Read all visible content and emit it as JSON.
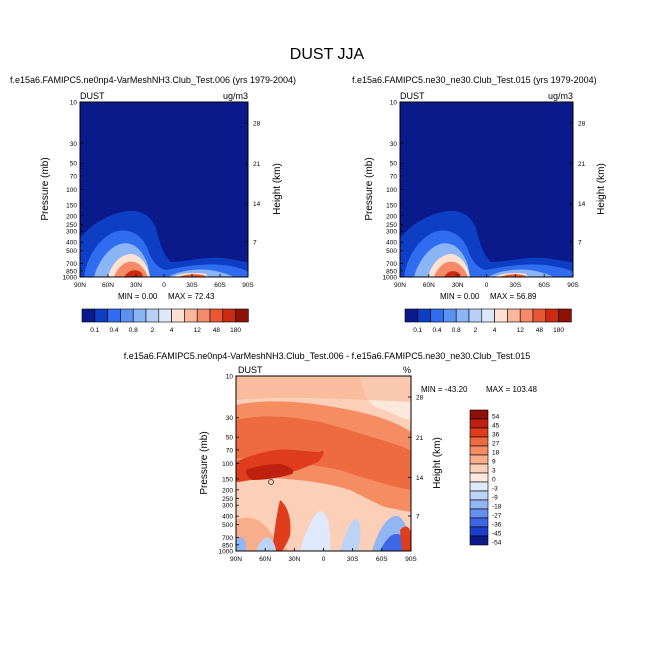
{
  "main_title": "DUST JJA",
  "chart_data": [
    {
      "type": "heatmap",
      "title": "f.e15a6.FAMIPC5.ne0np4-VarMeshNH3.Club_Test.006 (yrs 1979-2004)",
      "left_label": "DUST",
      "units": "ug/m3",
      "ylabel": "Pressure (mb)",
      "y2label": "Height (km)",
      "x_ticks": [
        "90N",
        "60N",
        "30N",
        "0",
        "30S",
        "60S",
        "90S"
      ],
      "y_ticks": [
        "10",
        "30",
        "50",
        "70",
        "100",
        "150",
        "200",
        "250",
        "300",
        "400",
        "500",
        "700",
        "850",
        "1000"
      ],
      "height_ticks": [
        "28",
        "21",
        "14",
        "7"
      ],
      "min_label": "MIN =   0.00",
      "max_label": "MAX =  72.43",
      "min": 0.0,
      "max": 72.43,
      "colorbar_ticks": [
        "0.1",
        "0.4",
        "0.8",
        "2",
        "4",
        "12",
        "48",
        "180"
      ]
    },
    {
      "type": "heatmap",
      "title": "f.e15a6.FAMIPC5.ne30_ne30.Club_Test.015 (yrs 1979-2004)",
      "left_label": "DUST",
      "units": "ug/m3",
      "ylabel": "Pressure (mb)",
      "y2label": "Height (km)",
      "x_ticks": [
        "90N",
        "60N",
        "30N",
        "0",
        "30S",
        "60S",
        "90S"
      ],
      "y_ticks": [
        "10",
        "30",
        "50",
        "70",
        "100",
        "150",
        "200",
        "250",
        "300",
        "400",
        "500",
        "700",
        "850",
        "1000"
      ],
      "height_ticks": [
        "28",
        "21",
        "14",
        "7"
      ],
      "min_label": "MIN =   0.00",
      "max_label": "MAX =  56.89",
      "min": 0.0,
      "max": 56.89,
      "colorbar_ticks": [
        "0.1",
        "0.4",
        "0.8",
        "2",
        "4",
        "12",
        "48",
        "180"
      ]
    },
    {
      "type": "heatmap",
      "title": "f.e15a6.FAMIPC5.ne0np4-VarMeshNH3.Club_Test.006 - f.e15a6.FAMIPC5.ne30_ne30.Club_Test.015",
      "left_label": "DUST",
      "units": "%",
      "ylabel": "Pressure (mb)",
      "y2label": "Height (km)",
      "x_ticks": [
        "90N",
        "60N",
        "30N",
        "0",
        "30S",
        "60S",
        "90S"
      ],
      "y_ticks": [
        "10",
        "30",
        "50",
        "70",
        "100",
        "150",
        "200",
        "250",
        "300",
        "400",
        "500",
        "700",
        "850",
        "1000"
      ],
      "height_ticks": [
        "28",
        "21",
        "14",
        "7"
      ],
      "min_label": "MIN = -43.20",
      "max_label": "MAX = 103.48",
      "min": -43.2,
      "max": 103.48,
      "colorbar_ticks": [
        "54",
        "45",
        "36",
        "27",
        "18",
        "9",
        "3",
        "0",
        "-3",
        "-9",
        "-18",
        "-27",
        "-36",
        "-45",
        "-54"
      ]
    }
  ],
  "colors": {
    "seq": [
      "#0a1a8a",
      "#0d3ec4",
      "#2f6cf0",
      "#5c92f4",
      "#8cb5f7",
      "#b8d0f8",
      "#dde9fa",
      "#fde2d3",
      "#f9b79c",
      "#f48a67",
      "#ea5833",
      "#cc2a13",
      "#8e1006"
    ],
    "div": [
      "#8e1006",
      "#c0200f",
      "#e03d1d",
      "#ee6a3f",
      "#f58c62",
      "#f8ad8b",
      "#fbcfb8",
      "#fde8dc",
      "#dfe9fb",
      "#bcd2f7",
      "#92b5f3",
      "#6690ee",
      "#3d67e6",
      "#1c3fc9",
      "#0a1a8a"
    ]
  }
}
